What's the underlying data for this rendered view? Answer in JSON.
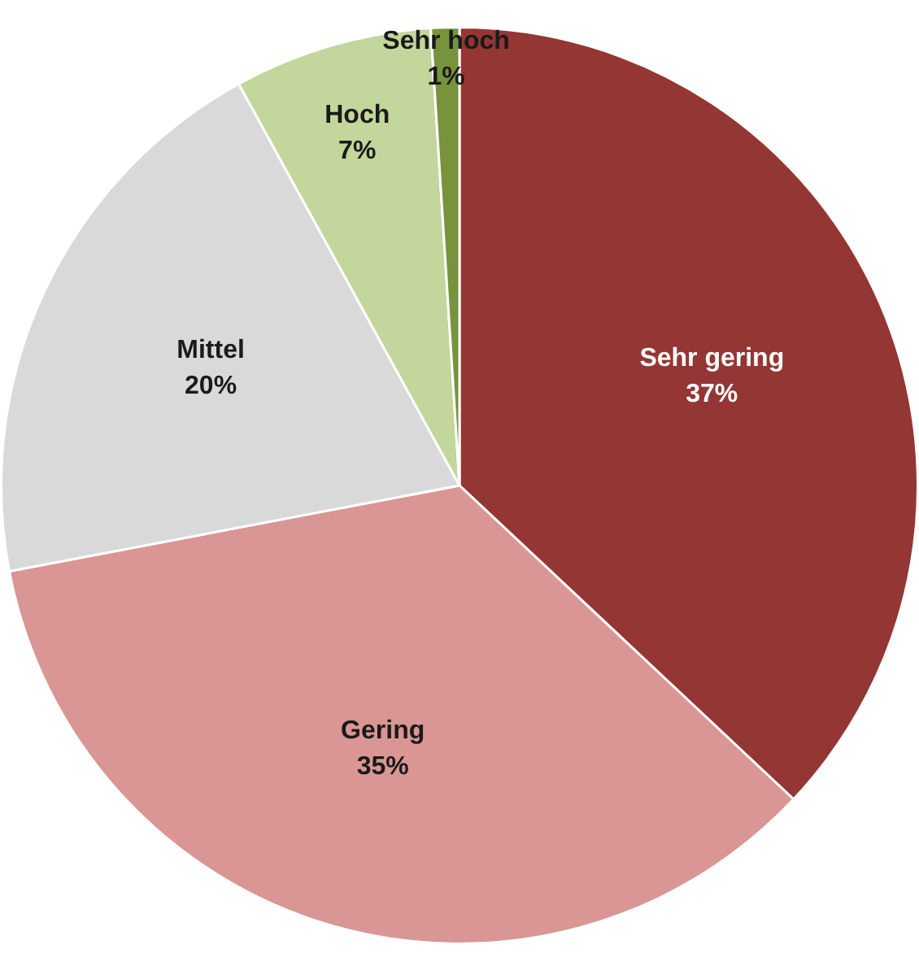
{
  "chart_data": {
    "type": "pie",
    "categories": [
      "Sehr gering",
      "Gering",
      "Mittel",
      "Hoch",
      "Sehr hoch"
    ],
    "values": [
      37,
      35,
      20,
      7,
      1
    ],
    "colors": [
      "#943634",
      "#d99694",
      "#d9d9d9",
      "#c3d69b",
      "#77933c"
    ],
    "value_labels": [
      "37%",
      "35%",
      "20%",
      "7%",
      "1%"
    ],
    "legend": false
  }
}
